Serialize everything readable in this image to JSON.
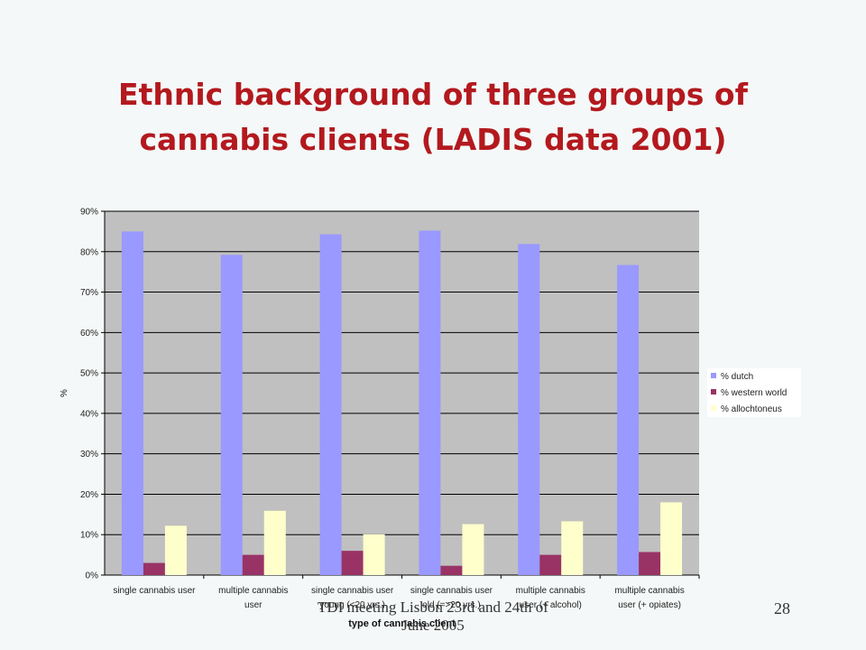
{
  "slide": {
    "title_line1": "Ethnic background of three groups of",
    "title_line2": "cannabis clients (LADIS data 2001)",
    "footer_line1": "TDI meeting Lisbon 23rd and 24th of",
    "footer_line2": "June 2005",
    "page_number": "28"
  },
  "chart_data": {
    "type": "bar",
    "xlabel": "type of cannabis client",
    "ylabel": "%",
    "ylim": [
      0,
      90
    ],
    "yticks": [
      "0%",
      "10%",
      "20%",
      "30%",
      "40%",
      "50%",
      "60%",
      "70%",
      "80%",
      "90%"
    ],
    "categories": [
      [
        "single cannabis user",
        ""
      ],
      [
        "multiple cannabis",
        "user"
      ],
      [
        "single cannabis user",
        "young (<20 yrs.)"
      ],
      [
        "single cannabis user",
        "old (=>20 yrs.)"
      ],
      [
        "multiple cannabis",
        "user (+ alcohol)"
      ],
      [
        "multiple cannabis",
        "user (+ opiates)"
      ]
    ],
    "series": [
      {
        "name": "% dutch",
        "color": "#9999ff",
        "values": [
          85,
          79.2,
          84.3,
          85.2,
          81.9,
          76.7
        ]
      },
      {
        "name": "% western world",
        "color": "#993366",
        "values": [
          3,
          5,
          6,
          2.3,
          5,
          5.7
        ]
      },
      {
        "name": "% allochtoneus",
        "color": "#ffffcc",
        "values": [
          12.2,
          15.9,
          10.1,
          12.6,
          13.3,
          18
        ]
      }
    ],
    "plot_background": "#c0c0c0",
    "grid": true,
    "legend_position": "right"
  }
}
